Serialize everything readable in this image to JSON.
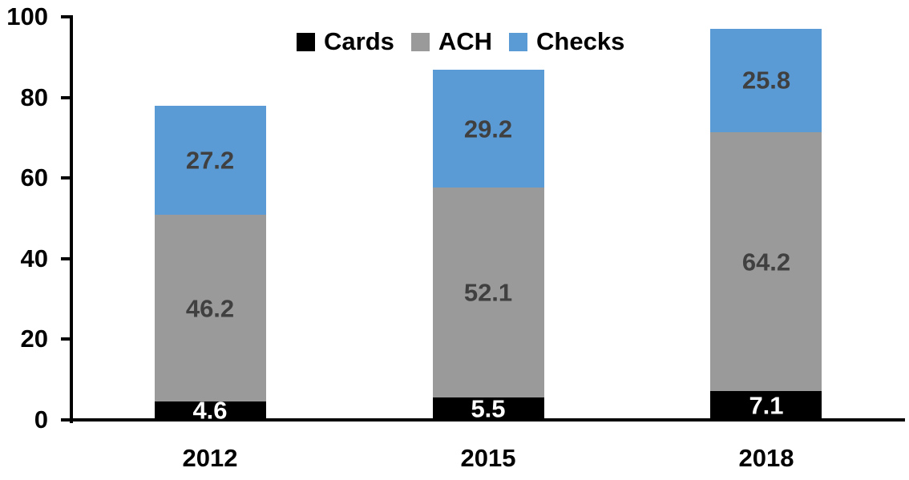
{
  "chart_data": {
    "type": "bar",
    "stacked": true,
    "orientation": "vertical",
    "categories": [
      "2012",
      "2015",
      "2018"
    ],
    "series": [
      {
        "name": "Cards",
        "color": "#000000",
        "label_color": "#FFFFFF",
        "values": [
          4.6,
          5.5,
          7.1
        ]
      },
      {
        "name": "ACH",
        "color": "#9A9A9A",
        "label_color": "#404040",
        "values": [
          46.2,
          52.1,
          64.2
        ]
      },
      {
        "name": "Checks",
        "color": "#5B9BD5",
        "label_color": "#404040",
        "values": [
          27.2,
          29.2,
          25.8
        ]
      }
    ],
    "data_labels_visible": true,
    "ylim": [
      0,
      100
    ],
    "yticks": [
      0,
      20,
      40,
      60,
      80,
      100
    ],
    "grid": "off",
    "legend_position": "top-center",
    "axis_color": "#000000",
    "background_color": "#FFFFFF"
  }
}
